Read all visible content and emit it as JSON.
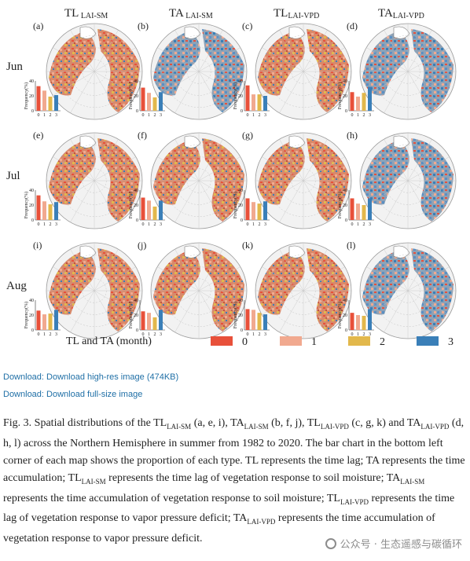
{
  "columns": [
    {
      "main": "TL",
      "sub": " LAI-SM"
    },
    {
      "main": "TA",
      "sub": " LAI-SM"
    },
    {
      "main": "TL",
      "sub": "LAI-VPD"
    },
    {
      "main": "TA",
      "sub": "LAI-VPD"
    }
  ],
  "rows": [
    "Jun",
    "Jul",
    "Aug"
  ],
  "panel_letters": [
    "(a)",
    "(b)",
    "(c)",
    "(d)",
    "(e)",
    "(f)",
    "(g)",
    "(h)",
    "(i)",
    "(j)",
    "(k)",
    "(l)"
  ],
  "legend": {
    "title": "TL and TA (month)",
    "items": [
      {
        "label": "0",
        "color": "#e8503a"
      },
      {
        "label": "1",
        "color": "#f1a98f"
      },
      {
        "label": "2",
        "color": "#e2b84c"
      },
      {
        "label": "3",
        "color": "#3a7fb8"
      }
    ]
  },
  "chart_data": {
    "type": "bar",
    "ylabel": "Frequency(%)",
    "ylim": [
      0,
      40
    ],
    "yticks": [
      "0",
      "20",
      "40"
    ],
    "categories": [
      "0",
      "1",
      "2",
      "3"
    ],
    "panels": [
      {
        "panel": "(a)",
        "values": [
          33,
          27,
          19,
          21
        ]
      },
      {
        "panel": "(b)",
        "values": [
          31,
          24,
          18,
          25
        ]
      },
      {
        "panel": "(c)",
        "values": [
          34,
          22,
          22,
          20
        ]
      },
      {
        "panel": "(d)",
        "values": [
          25,
          19,
          24,
          32
        ]
      },
      {
        "panel": "(e)",
        "values": [
          33,
          25,
          21,
          24
        ]
      },
      {
        "panel": "(f)",
        "values": [
          30,
          26,
          18,
          26
        ]
      },
      {
        "panel": "(g)",
        "values": [
          29,
          24,
          22,
          25
        ]
      },
      {
        "panel": "(h)",
        "values": [
          29,
          22,
          20,
          29
        ]
      },
      {
        "panel": "(i)",
        "values": [
          26,
          21,
          22,
          27
        ]
      },
      {
        "panel": "(j)",
        "values": [
          25,
          23,
          17,
          27
        ]
      },
      {
        "panel": "(k)",
        "values": [
          28,
          27,
          23,
          21
        ]
      },
      {
        "panel": "(l)",
        "values": [
          23,
          20,
          19,
          28
        ]
      }
    ]
  },
  "links": {
    "hires": "Download: Download high-res image (474KB)",
    "full": "Download: Download full-size image"
  },
  "caption": {
    "p1": "Fig. 3. Spatial distributions of the TL",
    "s1": "LAI-SM",
    "p2": " (a, e, i), TA",
    "s2": "LAI-SM",
    "p3": " (b, f, j), TL",
    "s3": "LAI-VPD",
    "p4": " (c, g, k) and TA",
    "s4": "LAI-VPD",
    "p5": " (d, h, l) across the Northern Hemisphere in summer from 1982 to 2020. The bar chart in the bottom left corner of each map shows the proportion of each type. TL represents the time lag; TA represents the time accumulation; TL",
    "s5": "LAI-SM",
    "p6": " represents the time lag of vegetation response to soil moisture; TA",
    "s6": "LAI-SM",
    "p7": " represents the time accumulation of vegetation response to soil moisture; TL",
    "s7": "LAI-VPD",
    "p8": " represents the time lag of vegetation response to vapor pressure deficit; TA",
    "s8": "LAI-VPD",
    "p9": " represents the time accumulation of vegetation response to vapor pressure deficit."
  },
  "watermark": "公众号 · 生态遥感与碳循环"
}
